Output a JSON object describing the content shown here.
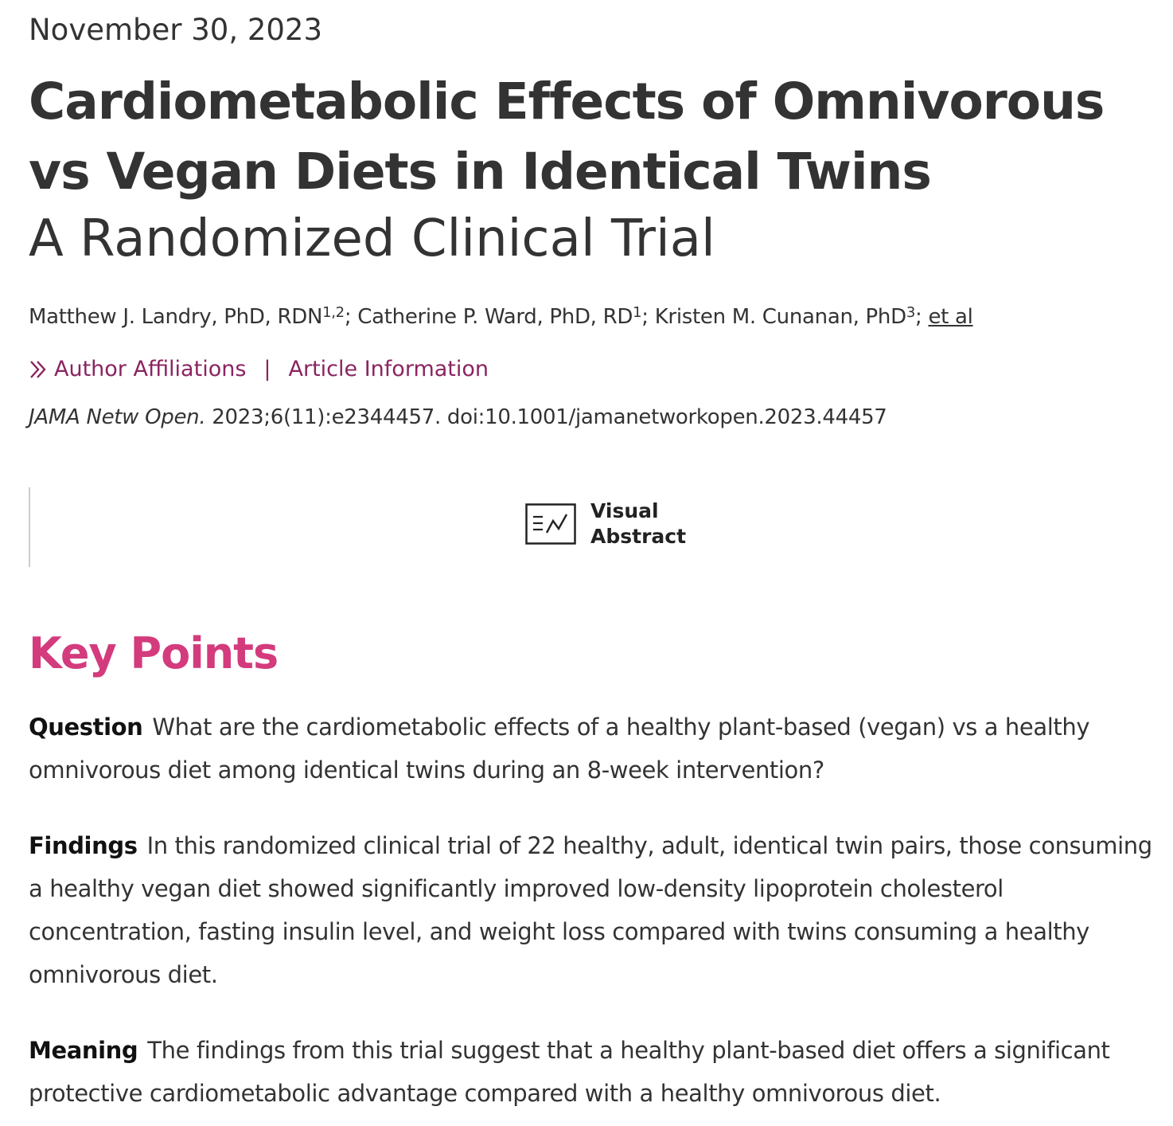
{
  "article": {
    "date": "November 30, 2023",
    "title": "Cardiometabolic Effects of Omnivorous vs Vegan Diets in Identical Twins",
    "subtitle": "A Randomized Clinical Trial"
  },
  "authors": {
    "a1_name": "Matthew J. Landry, PhD, RDN",
    "a1_sup": "1,2",
    "sep1": "; ",
    "a2_name": "Catherine P. Ward, PhD, RD",
    "a2_sup": "1",
    "sep2": "; ",
    "a3_name": "Kristen M. Cunanan, PhD",
    "a3_sup": "3",
    "sep3": "; ",
    "et_al": "et al"
  },
  "links": {
    "affiliations": "Author Affiliations",
    "separator": "|",
    "article_info": "Article Information"
  },
  "citation": {
    "journal": "JAMA Netw Open.",
    "reference": " 2023;6(11):e2344457. doi:10.1001/jamanetworkopen.2023.44457"
  },
  "visual_abstract": {
    "line1": "Visual",
    "line2": "Abstract",
    "icon": "visual-abstract-icon"
  },
  "key_points": {
    "heading": "Key Points",
    "question_label": "Question",
    "question_text": "What are the cardiometabolic effects of a healthy plant-based (vegan) vs a healthy omnivorous diet among identical twins during an 8-week intervention?",
    "findings_label": "Findings",
    "findings_text": "In this randomized clinical trial of 22 healthy, adult, identical twin pairs, those consuming a healthy vegan diet showed significantly improved low-density lipoprotein cholesterol concentration, fasting insulin level, and weight loss compared with twins consuming a healthy omnivorous diet.",
    "meaning_label": "Meaning",
    "meaning_text": "The findings from this trial suggest that a healthy plant-based diet offers a significant protective cardiometabolic advantage compared with a healthy omnivorous diet."
  },
  "colors": {
    "text": "#333333",
    "link": "#8a2461",
    "heading_accent": "#d33b7d"
  }
}
